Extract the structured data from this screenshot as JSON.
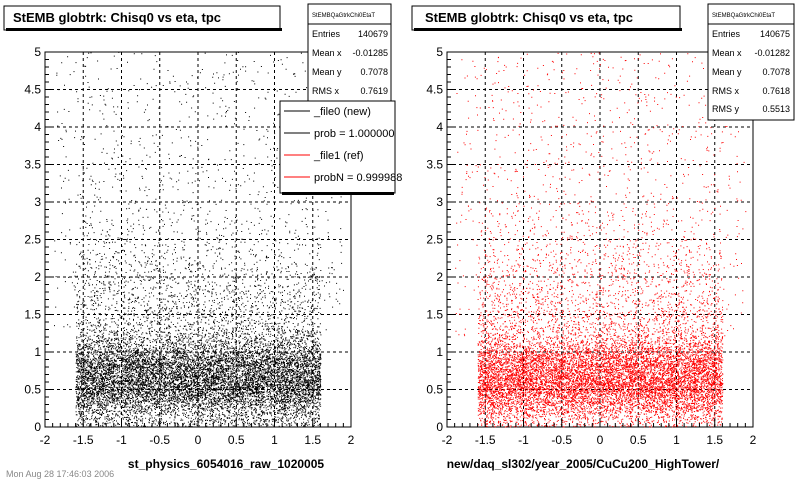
{
  "footer": "Mon Aug 28 17:46:03 2006",
  "chart_data": [
    {
      "type": "scatter",
      "title": "StEMB globtrk: Chisq0 vs eta, tpc",
      "xlabel": "st_physics_6054016_raw_1020005",
      "ylabel": "",
      "xlim": [
        -2,
        2
      ],
      "ylim": [
        0,
        5
      ],
      "x_ticks": [
        "-2",
        "-1.5",
        "-1",
        "-0.5",
        "0",
        "0.5",
        "1",
        "1.5",
        "2"
      ],
      "y_ticks": [
        "0",
        "0.5",
        "1",
        "1.5",
        "2",
        "2.5",
        "3",
        "3.5",
        "4",
        "4.5",
        "5"
      ],
      "grid": true,
      "marker_color": "#000000",
      "density": {
        "x_range": [
          -1.6,
          1.6
        ],
        "y_core": [
          0,
          1.0
        ],
        "y_peak": 0.6
      },
      "stats": {
        "title": "StEMBQaGtrkChi0EtaT",
        "rows": [
          {
            "label": "Entries",
            "value": "140679"
          },
          {
            "label": "Mean x",
            "value": "-0.01285"
          },
          {
            "label": "Mean y",
            "value": "0.7078"
          },
          {
            "label": "RMS x",
            "value": "0.7619"
          }
        ]
      },
      "legend": {
        "placement": "top-right",
        "entries": [
          {
            "label": "_file0 (new)",
            "color": "#000000"
          },
          {
            "label": "prob = 1.000000",
            "color": "#000000"
          },
          {
            "label": "_file1 (ref)",
            "color": "#ff0000"
          },
          {
            "label": "probN = 0.999988",
            "color": "#ff0000"
          }
        ]
      }
    },
    {
      "type": "scatter",
      "title": "StEMB globtrk: Chisq0 vs eta, tpc",
      "xlabel": "new/daq_sl302/year_2005/CuCu200_HighTower/",
      "ylabel": "",
      "xlim": [
        -2,
        2
      ],
      "ylim": [
        0,
        5
      ],
      "x_ticks": [
        "-2",
        "-1.5",
        "-1",
        "-0.5",
        "0",
        "0.5",
        "1",
        "1.5",
        "2"
      ],
      "y_ticks": [
        "0",
        "0.5",
        "1",
        "1.5",
        "2",
        "2.5",
        "3",
        "3.5",
        "4",
        "4.5",
        "5"
      ],
      "grid": true,
      "marker_color": "#ff0000",
      "density": {
        "x_range": [
          -1.6,
          1.6
        ],
        "y_core": [
          0,
          1.0
        ],
        "y_peak": 0.6
      },
      "stats": {
        "title": "StEMBQaGtrkChi0EtaT",
        "rows": [
          {
            "label": "Entries",
            "value": "140675"
          },
          {
            "label": "Mean x",
            "value": "-0.01282"
          },
          {
            "label": "Mean y",
            "value": "0.7078"
          },
          {
            "label": "RMS x",
            "value": "0.7618"
          },
          {
            "label": "RMS y",
            "value": "0.5513"
          }
        ]
      }
    }
  ]
}
